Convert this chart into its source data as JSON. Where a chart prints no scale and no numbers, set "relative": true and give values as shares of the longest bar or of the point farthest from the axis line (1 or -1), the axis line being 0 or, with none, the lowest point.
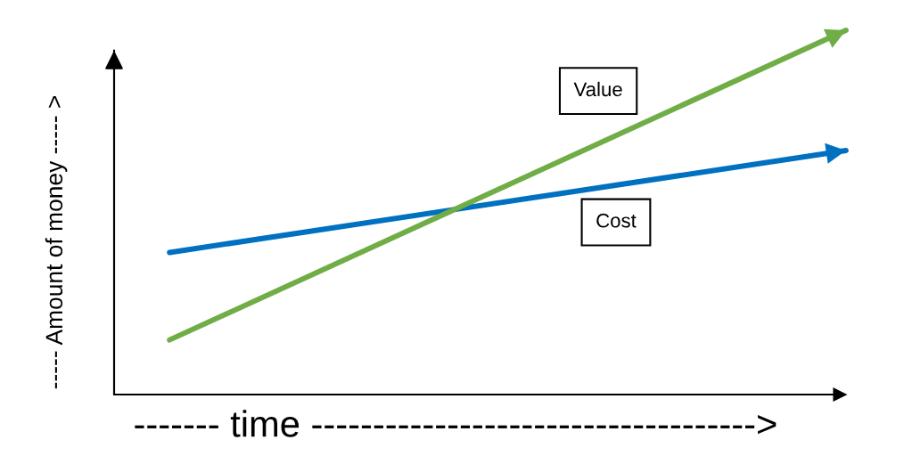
{
  "chart_data": {
    "type": "line",
    "relative": true,
    "xlabel": "------- time ------------------------------------>",
    "ylabel": "----- Amount of money ----- >",
    "categories": [
      null,
      null
    ],
    "series": [
      {
        "name": "Cost",
        "color": "#0070c0",
        "values": [
          0.39,
          0.67
        ]
      },
      {
        "name": "Value",
        "color": "#70ad47",
        "values": [
          0.15,
          1
        ]
      }
    ],
    "legend": false,
    "marker": "none",
    "line_style": "solid"
  }
}
